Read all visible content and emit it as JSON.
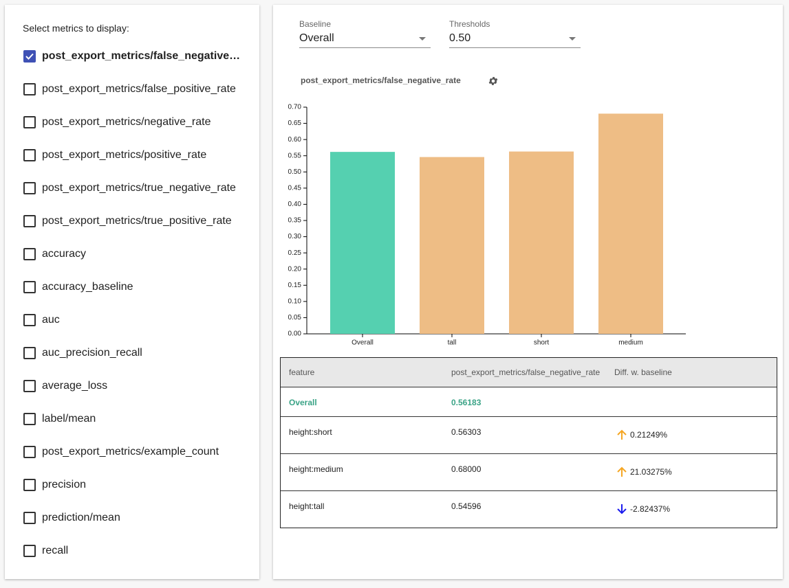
{
  "sidebar": {
    "title": "Select metrics to display:",
    "metrics": [
      {
        "label": "post_export_metrics/false_negative_rate",
        "checked": true
      },
      {
        "label": "post_export_metrics/false_positive_rate",
        "checked": false
      },
      {
        "label": "post_export_metrics/negative_rate",
        "checked": false
      },
      {
        "label": "post_export_metrics/positive_rate",
        "checked": false
      },
      {
        "label": "post_export_metrics/true_negative_rate",
        "checked": false
      },
      {
        "label": "post_export_metrics/true_positive_rate",
        "checked": false
      },
      {
        "label": "accuracy",
        "checked": false
      },
      {
        "label": "accuracy_baseline",
        "checked": false
      },
      {
        "label": "auc",
        "checked": false
      },
      {
        "label": "auc_precision_recall",
        "checked": false
      },
      {
        "label": "average_loss",
        "checked": false
      },
      {
        "label": "label/mean",
        "checked": false
      },
      {
        "label": "post_export_metrics/example_count",
        "checked": false
      },
      {
        "label": "precision",
        "checked": false
      },
      {
        "label": "prediction/mean",
        "checked": false
      },
      {
        "label": "recall",
        "checked": false
      }
    ]
  },
  "controls": {
    "baseline": {
      "label": "Baseline",
      "value": "Overall"
    },
    "thresholds": {
      "label": "Thresholds",
      "value": "0.50"
    }
  },
  "chart_data": {
    "type": "bar",
    "title": "post_export_metrics/false_negative_rate",
    "categories": [
      "Overall",
      "tall",
      "short",
      "medium"
    ],
    "values": [
      0.56183,
      0.54596,
      0.56303,
      0.68
    ],
    "colors": [
      "#55d0b0",
      "#eebd85",
      "#eebd85",
      "#eebd85"
    ],
    "ylim": [
      0,
      0.7
    ],
    "yticks": [
      {
        "value": 0,
        "label": "0.00"
      },
      {
        "value": 0.05,
        "label": "0.05"
      },
      {
        "value": 0.1,
        "label": "0.10"
      },
      {
        "value": 0.15,
        "label": "0.15"
      },
      {
        "value": 0.2,
        "label": "0.20"
      },
      {
        "value": 0.25,
        "label": "0.25"
      },
      {
        "value": 0.3,
        "label": "0.30"
      },
      {
        "value": 0.35,
        "label": "0.35"
      },
      {
        "value": 0.4,
        "label": "0.40"
      },
      {
        "value": 0.45,
        "label": "0.45"
      },
      {
        "value": 0.5,
        "label": "0.50"
      },
      {
        "value": 0.55,
        "label": "0.55"
      },
      {
        "value": 0.6,
        "label": "0.60"
      },
      {
        "value": 0.65,
        "label": "0.65"
      },
      {
        "value": 0.7,
        "label": "0.70"
      }
    ]
  },
  "table": {
    "headers": [
      "feature",
      "post_export_metrics/false_negative_rate",
      "Diff. w. baseline"
    ],
    "rows": [
      {
        "feature": "Overall",
        "value": "0.56183"
      },
      {
        "feature": "height:short",
        "value": "0.56303",
        "diff": "0.21249%",
        "direction": "up"
      },
      {
        "feature": "height:medium",
        "value": "0.68000",
        "diff": "21.03275%",
        "direction": "up"
      },
      {
        "feature": "height:tall",
        "value": "0.54596",
        "diff": "-2.82437%",
        "direction": "down"
      }
    ]
  }
}
